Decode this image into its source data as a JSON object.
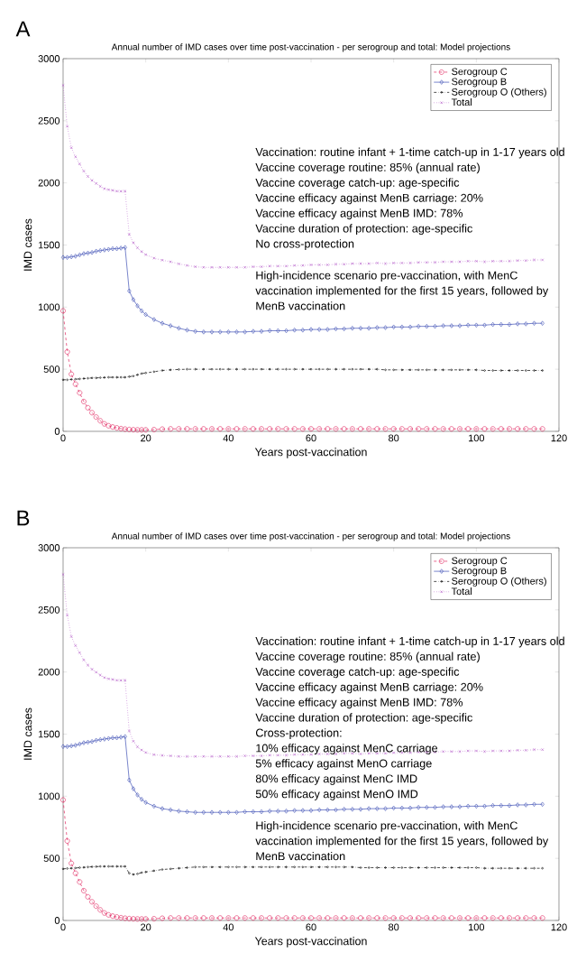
{
  "chart_data": [
    {
      "type": "line",
      "title": "Annual number of IMD cases over time post-vaccination - per serogroup and total: Model projections",
      "xlabel": "Years post-vaccination",
      "ylabel": "IMD cases",
      "xlim": [
        0,
        120
      ],
      "ylim": [
        0,
        3000
      ],
      "xticks": [
        0,
        20,
        40,
        60,
        80,
        100,
        120
      ],
      "yticks": [
        0,
        500,
        1000,
        1500,
        2000,
        2500,
        3000
      ],
      "legend": "top right",
      "x": [
        0,
        1,
        2,
        3,
        4,
        5,
        6,
        7,
        8,
        9,
        10,
        11,
        12,
        13,
        14,
        15,
        16,
        17,
        18,
        19,
        20,
        22,
        24,
        26,
        28,
        30,
        32,
        34,
        36,
        38,
        40,
        42,
        44,
        46,
        48,
        50,
        52,
        54,
        56,
        58,
        60,
        62,
        64,
        66,
        68,
        70,
        72,
        74,
        76,
        78,
        80,
        82,
        84,
        86,
        88,
        90,
        92,
        94,
        96,
        98,
        100,
        102,
        104,
        106,
        108,
        110,
        112,
        114,
        116
      ],
      "series": [
        {
          "name": "Serogroup C",
          "color": "#e0245e",
          "marker": "circle",
          "line_style": "dashed",
          "values": [
            970,
            640,
            460,
            380,
            310,
            240,
            190,
            150,
            115,
            85,
            60,
            45,
            35,
            28,
            22,
            18,
            15,
            13,
            12,
            12,
            12,
            14,
            18,
            20,
            20,
            20,
            20,
            20,
            20,
            20,
            20,
            20,
            20,
            20,
            20,
            20,
            20,
            20,
            20,
            20,
            20,
            20,
            20,
            20,
            20,
            20,
            20,
            20,
            20,
            20,
            20,
            20,
            20,
            20,
            20,
            20,
            20,
            20,
            20,
            20,
            20,
            20,
            20,
            20,
            20,
            20,
            20,
            20,
            20
          ]
        },
        {
          "name": "Serogroup B",
          "color": "#3f51b5",
          "marker": "diamond",
          "line_style": "solid",
          "values": [
            1400,
            1400,
            1405,
            1410,
            1420,
            1430,
            1435,
            1440,
            1450,
            1455,
            1460,
            1465,
            1470,
            1470,
            1475,
            1480,
            1130,
            1060,
            1010,
            970,
            940,
            900,
            870,
            850,
            830,
            815,
            805,
            800,
            800,
            800,
            800,
            800,
            800,
            805,
            805,
            810,
            810,
            810,
            815,
            815,
            820,
            820,
            820,
            825,
            825,
            830,
            830,
            830,
            835,
            835,
            840,
            840,
            840,
            845,
            845,
            845,
            850,
            850,
            850,
            855,
            855,
            855,
            860,
            860,
            860,
            865,
            865,
            870,
            870
          ]
        },
        {
          "name": "Serogroup O (Others)",
          "color": "#000000",
          "marker": "circle",
          "line_style": "dashdot",
          "values": [
            415,
            415,
            418,
            420,
            422,
            425,
            427,
            430,
            430,
            432,
            433,
            435,
            435,
            435,
            435,
            435,
            440,
            445,
            455,
            465,
            470,
            480,
            490,
            495,
            498,
            500,
            500,
            500,
            500,
            500,
            500,
            500,
            500,
            500,
            500,
            500,
            500,
            500,
            500,
            500,
            500,
            500,
            500,
            500,
            500,
            500,
            500,
            500,
            500,
            495,
            495,
            495,
            495,
            495,
            495,
            495,
            495,
            495,
            495,
            495,
            495,
            490,
            490,
            490,
            490,
            490,
            490,
            490,
            490
          ]
        },
        {
          "name": "Total",
          "color": "#b45ac8",
          "marker": "cross",
          "line_style": "dotted",
          "values": [
            2785,
            2455,
            2283,
            2210,
            2152,
            2095,
            2052,
            2020,
            1995,
            1972,
            1953,
            1945,
            1940,
            1933,
            1932,
            1933,
            1585,
            1518,
            1477,
            1447,
            1422,
            1394,
            1378,
            1365,
            1348,
            1335,
            1325,
            1320,
            1320,
            1320,
            1320,
            1320,
            1320,
            1325,
            1325,
            1330,
            1330,
            1330,
            1335,
            1335,
            1340,
            1340,
            1340,
            1345,
            1345,
            1350,
            1350,
            1350,
            1355,
            1350,
            1355,
            1355,
            1355,
            1360,
            1360,
            1360,
            1365,
            1365,
            1365,
            1370,
            1370,
            1365,
            1370,
            1370,
            1370,
            1375,
            1375,
            1380,
            1380
          ]
        }
      ],
      "annotations": [
        "A",
        "Vaccination: routine infant + 1-time catch-up in 1-17 years old",
        "Vaccine coverage routine: 85% (annual rate)",
        "Vaccine coverage catch-up: age-specific",
        "Vaccine efficacy against MenB carriage: 20%",
        "Vaccine efficacy against MenB IMD: 78%",
        "Vaccine duration of protection: age-specific",
        "No cross-protection",
        "High-incidence scenario pre-vaccination, with MenC vaccination implemented for the first 15 years, followed by MenB vaccination"
      ]
    },
    {
      "type": "line",
      "title": "Annual number of IMD cases over time post-vaccination - per serogroup and total: Model projections",
      "xlabel": "Years post-vaccination",
      "ylabel": "IMD cases",
      "xlim": [
        0,
        120
      ],
      "ylim": [
        0,
        3000
      ],
      "xticks": [
        0,
        20,
        40,
        60,
        80,
        100,
        120
      ],
      "yticks": [
        0,
        500,
        1000,
        1500,
        2000,
        2500,
        3000
      ],
      "legend": "top right",
      "x": [
        0,
        1,
        2,
        3,
        4,
        5,
        6,
        7,
        8,
        9,
        10,
        11,
        12,
        13,
        14,
        15,
        16,
        17,
        18,
        19,
        20,
        22,
        24,
        26,
        28,
        30,
        32,
        34,
        36,
        38,
        40,
        42,
        44,
        46,
        48,
        50,
        52,
        54,
        56,
        58,
        60,
        62,
        64,
        66,
        68,
        70,
        72,
        74,
        76,
        78,
        80,
        82,
        84,
        86,
        88,
        90,
        92,
        94,
        96,
        98,
        100,
        102,
        104,
        106,
        108,
        110,
        112,
        114,
        116
      ],
      "series": [
        {
          "name": "Serogroup C",
          "color": "#e0245e",
          "marker": "circle",
          "line_style": "dashed",
          "values": [
            970,
            640,
            460,
            380,
            310,
            240,
            190,
            150,
            115,
            85,
            60,
            45,
            35,
            28,
            22,
            18,
            15,
            13,
            12,
            12,
            12,
            14,
            18,
            20,
            20,
            20,
            20,
            20,
            20,
            20,
            20,
            20,
            20,
            20,
            20,
            20,
            20,
            20,
            20,
            20,
            20,
            20,
            20,
            20,
            20,
            20,
            20,
            20,
            20,
            20,
            20,
            20,
            20,
            20,
            20,
            20,
            20,
            20,
            20,
            20,
            20,
            20,
            20,
            20,
            20,
            20,
            20,
            20,
            20
          ]
        },
        {
          "name": "Serogroup B",
          "color": "#3f51b5",
          "marker": "diamond",
          "line_style": "solid",
          "values": [
            1400,
            1400,
            1405,
            1410,
            1420,
            1430,
            1435,
            1440,
            1450,
            1455,
            1460,
            1465,
            1470,
            1470,
            1475,
            1480,
            1130,
            1060,
            1010,
            975,
            950,
            920,
            900,
            890,
            880,
            875,
            870,
            870,
            870,
            870,
            870,
            870,
            875,
            875,
            875,
            880,
            880,
            880,
            885,
            885,
            885,
            890,
            890,
            890,
            895,
            895,
            895,
            900,
            900,
            900,
            905,
            905,
            905,
            910,
            910,
            910,
            915,
            915,
            915,
            920,
            920,
            920,
            925,
            925,
            925,
            930,
            930,
            935,
            935
          ]
        },
        {
          "name": "Serogroup O (Others)",
          "color": "#000000",
          "marker": "circle",
          "line_style": "dashdot",
          "values": [
            415,
            418,
            420,
            422,
            425,
            427,
            430,
            432,
            433,
            435,
            435,
            435,
            435,
            435,
            435,
            435,
            380,
            370,
            375,
            385,
            390,
            400,
            410,
            415,
            420,
            425,
            430,
            430,
            430,
            430,
            430,
            430,
            430,
            430,
            430,
            430,
            430,
            430,
            430,
            430,
            430,
            430,
            430,
            430,
            430,
            430,
            425,
            425,
            425,
            425,
            425,
            425,
            425,
            425,
            425,
            425,
            425,
            425,
            425,
            425,
            425,
            420,
            420,
            420,
            420,
            420,
            420,
            420,
            420
          ]
        },
        {
          "name": "Total",
          "color": "#b45ac8",
          "marker": "cross",
          "line_style": "dotted",
          "values": [
            2785,
            2458,
            2285,
            2212,
            2155,
            2097,
            2055,
            2022,
            1998,
            1975,
            1955,
            1945,
            1940,
            1933,
            1932,
            1933,
            1525,
            1443,
            1397,
            1372,
            1352,
            1334,
            1328,
            1325,
            1320,
            1320,
            1320,
            1320,
            1320,
            1320,
            1320,
            1320,
            1325,
            1325,
            1325,
            1330,
            1330,
            1330,
            1335,
            1335,
            1335,
            1340,
            1340,
            1340,
            1345,
            1345,
            1340,
            1345,
            1345,
            1345,
            1350,
            1350,
            1350,
            1355,
            1355,
            1355,
            1360,
            1360,
            1360,
            1365,
            1365,
            1360,
            1365,
            1365,
            1365,
            1370,
            1370,
            1375,
            1375
          ]
        }
      ],
      "annotations": [
        "B",
        "Vaccination: routine infant + 1-time catch-up in 1-17 years old",
        "Vaccine coverage routine: 85% (annual rate)",
        "Vaccine coverage catch-up: age-specific",
        "Vaccine efficacy against MenB carriage: 20%",
        "Vaccine efficacy against MenB IMD: 78%",
        "Vaccine duration of protection: age-specific",
        "Cross-protection:",
        "10% efficacy against MenC carriage",
        "5% efficacy against MenO carriage",
        "80% efficacy against MenC IMD",
        "50% efficacy against MenO IMD",
        "High-incidence scenario pre-vaccination, with MenC vaccination implemented for the first 15 years, followed by MenB vaccination"
      ]
    }
  ]
}
